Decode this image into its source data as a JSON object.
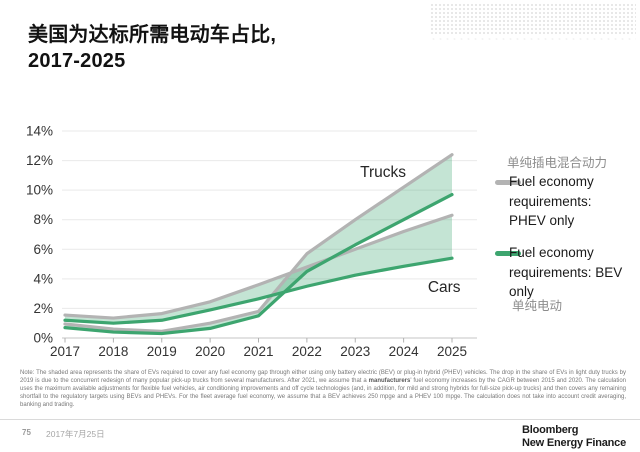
{
  "title": {
    "line1": "美国为达标所需电动车占比,",
    "line2": "2017-2025"
  },
  "colors": {
    "line_phev": "#b3b3b3",
    "line_bev": "#3da56f",
    "band_fill": "#3da56f",
    "band_opacity": 0.3,
    "grid": "#e9e9e9",
    "axis": "#c4c4c4",
    "tick": "#b0b0b0"
  },
  "chart_data": {
    "type": "area",
    "title": "美国为达标所需电动车占比, 2017-2025",
    "xlabel": "",
    "ylabel": "",
    "ylim": [
      0,
      14
    ],
    "grid": "horizontal",
    "x_labels": [
      "2017",
      "2018",
      "2019",
      "2020",
      "2021",
      "2022",
      "2023",
      "2024",
      "2025"
    ],
    "y_ticks": [
      {
        "value": 0,
        "label": "0%"
      },
      {
        "value": 2,
        "label": "2%"
      },
      {
        "value": 4,
        "label": "4%"
      },
      {
        "value": 6,
        "label": "6%"
      },
      {
        "value": 8,
        "label": "8%"
      },
      {
        "value": 10,
        "label": "10%"
      },
      {
        "value": 12,
        "label": "12%"
      },
      {
        "value": 14,
        "label": "14%"
      }
    ],
    "series": [
      {
        "name": "Trucks - Fuel economy requirements: PHEV only",
        "color_role": "line_phev",
        "values": [
          0.95,
          0.6,
          0.45,
          1.0,
          1.8,
          5.7,
          8.0,
          10.2,
          12.4
        ]
      },
      {
        "name": "Trucks - Fuel economy requirements: BEV only",
        "color_role": "line_bev",
        "values": [
          0.7,
          0.4,
          0.3,
          0.65,
          1.5,
          4.5,
          6.3,
          8.0,
          9.7
        ]
      },
      {
        "name": "Cars - Fuel economy requirements: PHEV only",
        "color_role": "line_phev",
        "values": [
          1.55,
          1.35,
          1.65,
          2.45,
          3.6,
          4.8,
          6.0,
          7.2,
          8.3
        ]
      },
      {
        "name": "Cars - Fuel economy requirements: BEV only",
        "color_role": "line_bev",
        "values": [
          1.2,
          1.0,
          1.2,
          1.9,
          2.65,
          3.5,
          4.25,
          4.85,
          5.4
        ]
      }
    ],
    "bands": [
      {
        "upper": 0,
        "lower": 1,
        "label": "Trucks"
      },
      {
        "upper": 2,
        "lower": 3,
        "label": "Cars"
      }
    ],
    "annotations": [
      {
        "text": "Trucks",
        "x": 2023.1,
        "y": 11.85
      },
      {
        "text": "Cars",
        "x": 2024.5,
        "y": 4.06
      }
    ],
    "legend_position": "right"
  },
  "legend": {
    "phev_cn": "单纯插电混合动力",
    "phev": {
      "lines": [
        "Fuel economy",
        "requirements:",
        "PHEV only"
      ]
    },
    "bev": {
      "lines": [
        "Fuel economy",
        "requirements: BEV",
        "only"
      ]
    },
    "bev_cn": "单纯电动"
  },
  "note": {
    "part1": "Note: The shaded area represents the share of EVs required to cover any fuel economy gap through either using only battery electric (BEV) or plug-in hybrid (PHEV) vehicles. The drop in the share of EVs in light duty trucks by 2019 is due to the concurrent redesign of many popular pick-up trucks from several manufacturers. After 2021, we assume that a ",
    "bold": "manufacturers",
    "part2": "' fuel economy increases by the CAGR between 2015 and 2020. The calculation uses the maximum available adjustments for flexible fuel vehicles, air conditioning improvements and off cycle technologies (and, in addition, for mild and strong hybrids for full-size pick-up trucks) and then covers any remaining shortfall to the regulatory targets using BEVs and PHEVs. For the fleet average fuel economy, we assume that a BEV achieves 250 mpge and a PHEV 100 mpge. The calculation does not take into account credit averaging, banking and trading."
  },
  "footer": {
    "page": "75",
    "date": "2017年7月25日",
    "logo_line1": "Bloomberg",
    "logo_line2": "New Energy Finance"
  }
}
